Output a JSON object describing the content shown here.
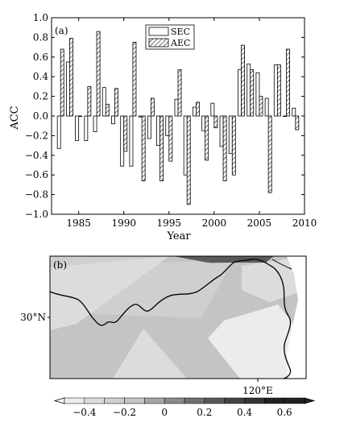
{
  "chart_data": [
    {
      "type": "bar",
      "panel_label": "(a)",
      "xlabel": "Year",
      "ylabel": "ACC",
      "xlim": [
        1982,
        2010
      ],
      "ylim": [
        -1.0,
        1.0
      ],
      "x_ticks": [
        1985,
        1990,
        1995,
        2000,
        2005,
        2010
      ],
      "y_ticks": [
        -1.0,
        -0.8,
        -0.6,
        -0.4,
        -0.2,
        0.0,
        0.2,
        0.4,
        0.6,
        0.8,
        1.0
      ],
      "y_tick_labels": [
        "−1.0",
        "−0.8",
        "−0.6",
        "−0.4",
        "−0.2",
        "0.0",
        "0.2",
        "0.4",
        "0.6",
        "0.8",
        "1.0"
      ],
      "legend_position": "top-center",
      "categories": [
        1983,
        1984,
        1985,
        1986,
        1987,
        1988,
        1989,
        1990,
        1991,
        1992,
        1993,
        1994,
        1995,
        1996,
        1997,
        1998,
        1999,
        2000,
        2001,
        2002,
        2003,
        2004,
        2005,
        2006,
        2007,
        2008,
        2009
      ],
      "series": [
        {
          "name": "SEC",
          "fill": "open",
          "values": [
            -0.33,
            0.55,
            -0.25,
            -0.25,
            -0.16,
            0.29,
            -0.08,
            -0.51,
            -0.51,
            -0.01,
            -0.23,
            -0.3,
            -0.2,
            0.17,
            -0.6,
            0.09,
            -0.15,
            0.13,
            -0.31,
            -0.38,
            0.47,
            0.53,
            0.44,
            0.18,
            0.52,
            0.0,
            0.08
          ]
        },
        {
          "name": "AEC",
          "fill": "hatched",
          "values": [
            0.68,
            0.79,
            0.0,
            0.3,
            0.86,
            0.12,
            0.28,
            -0.36,
            0.75,
            -0.66,
            0.18,
            -0.66,
            -0.46,
            0.47,
            -0.9,
            0.14,
            -0.45,
            -0.12,
            -0.66,
            -0.6,
            0.72,
            0.47,
            0.2,
            -0.78,
            0.52,
            0.68,
            -0.14
          ]
        }
      ]
    },
    {
      "type": "heatmap",
      "panel_label": "(b)",
      "x_tick_labels": [
        "120°E"
      ],
      "y_tick_labels": [
        "30°N"
      ],
      "colorbar": {
        "levels": [
          -0.5,
          -0.4,
          -0.3,
          -0.2,
          -0.1,
          0,
          0.1,
          0.2,
          0.3,
          0.4,
          0.5,
          0.6,
          0.7
        ],
        "tick_values": [
          -0.4,
          -0.2,
          0,
          0.2,
          0.4,
          0.6
        ],
        "tick_labels": [
          "−0.4",
          "−0.2",
          "0",
          "0.2",
          "0.4",
          "0.6"
        ],
        "colors": [
          "#ffffff",
          "#ececec",
          "#dcdcdc",
          "#cfcfcf",
          "#c4c4c4",
          "#a5a5a5",
          "#8a8a8a",
          "#707070",
          "#5a5a5a",
          "#444444",
          "#333333",
          "#222222"
        ]
      },
      "region_fill_colors": [
        "#c4c4c4",
        "#cfcfcf",
        "#dcdcdc",
        "#ececec",
        "#a5a5a5",
        "#5a5a5a"
      ]
    }
  ]
}
